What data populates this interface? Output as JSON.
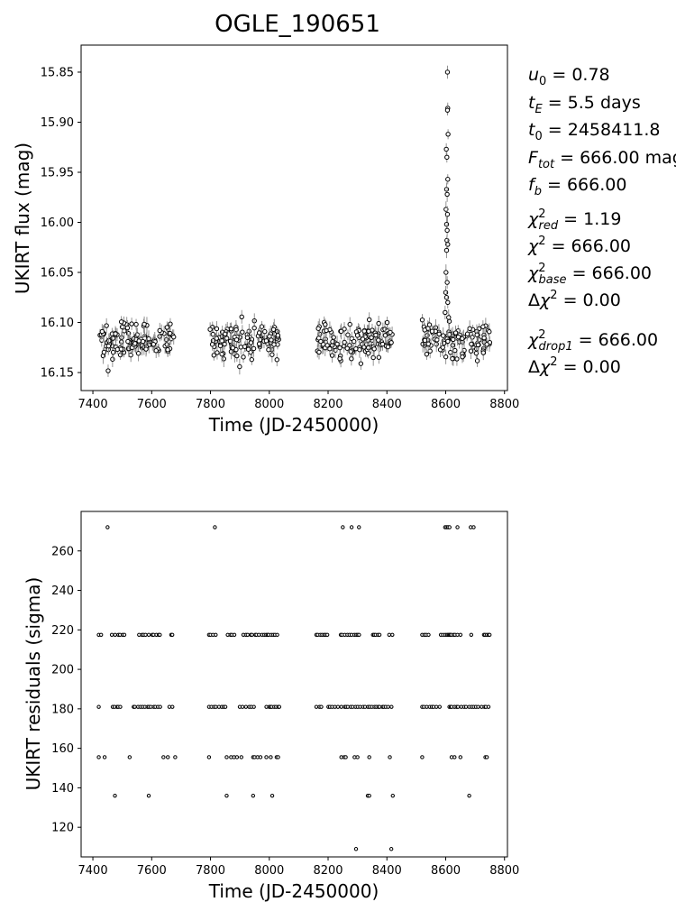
{
  "figure_title": "OGLE_190651",
  "params": {
    "u0": "0.78",
    "tE": "5.5",
    "tE_unit": "days",
    "t0": "2458411.8",
    "Ftot": "666.00",
    "Ftot_unit": "mag",
    "fb": "666.00",
    "chi2_red": "1.19",
    "chi2": "666.00",
    "chi2_base": "666.00",
    "dchi2": "0.00",
    "chi2_drop1": "666.00",
    "dchi2_drop1": "0.00"
  },
  "chart_data": [
    {
      "type": "scatter",
      "panel": "light-curve",
      "xlabel": "Time (JD-2450000)",
      "ylabel": "UKIRT flux (mag)",
      "xlim": [
        7360,
        8810
      ],
      "ylim": [
        16.168,
        15.823
      ],
      "y_inverted": true,
      "xticks": [
        7400,
        7600,
        7800,
        8000,
        8200,
        8400,
        8600,
        8800
      ],
      "yticks": [
        15.85,
        15.9,
        15.95,
        16.0,
        16.05,
        16.1,
        16.15
      ],
      "ytick_labels": [
        "15.85",
        "15.90",
        "15.95",
        "16.00",
        "16.05",
        "16.10",
        "16.15"
      ],
      "baseline_mag": 16.118,
      "seasons": [
        [
          7420,
          7675
        ],
        [
          7795,
          8035
        ],
        [
          8160,
          8420
        ],
        [
          8520,
          8750
        ]
      ],
      "peak": {
        "x": 8606,
        "y": 15.85
      },
      "event_points": [
        {
          "x": 8606,
          "y": 15.85
        },
        {
          "x": 8607,
          "y": 15.886
        },
        {
          "x": 8606,
          "y": 15.888
        },
        {
          "x": 8608,
          "y": 15.912
        },
        {
          "x": 8602,
          "y": 15.927
        },
        {
          "x": 8604,
          "y": 15.935
        },
        {
          "x": 8607,
          "y": 15.957
        },
        {
          "x": 8603,
          "y": 15.967
        },
        {
          "x": 8605,
          "y": 15.972
        },
        {
          "x": 8601,
          "y": 15.987
        },
        {
          "x": 8606,
          "y": 15.992
        },
        {
          "x": 8603,
          "y": 16.002
        },
        {
          "x": 8605,
          "y": 16.008
        },
        {
          "x": 8604,
          "y": 16.018
        },
        {
          "x": 8607,
          "y": 16.022
        },
        {
          "x": 8603,
          "y": 16.028
        },
        {
          "x": 8601,
          "y": 16.05
        },
        {
          "x": 8605,
          "y": 16.06
        },
        {
          "x": 8600,
          "y": 16.07
        },
        {
          "x": 8603,
          "y": 16.075
        },
        {
          "x": 8607,
          "y": 16.08
        },
        {
          "x": 8598,
          "y": 16.09
        },
        {
          "x": 8610,
          "y": 16.095
        }
      ],
      "errorbar": 0.006
    },
    {
      "type": "scatter",
      "panel": "residuals",
      "xlabel": "Time (JD-2450000)",
      "ylabel": "UKIRT residuals (sigma)",
      "xlim": [
        7360,
        8810
      ],
      "ylim": [
        105,
        280
      ],
      "xticks": [
        7400,
        7600,
        7800,
        8000,
        8200,
        8400,
        8600,
        8800
      ],
      "yticks": [
        120,
        140,
        160,
        180,
        200,
        220,
        240,
        260
      ],
      "levels": [
        {
          "y": 272,
          "x": [
            7450,
            7815,
            8250,
            8280,
            8305,
            8598,
            8603,
            8608,
            8613,
            8640,
            8685,
            8695
          ]
        },
        {
          "y": 217.5,
          "density": "dense"
        },
        {
          "y": 181,
          "density": "dense"
        },
        {
          "y": 155.5,
          "x": [
            7420,
            7440,
            7525,
            7640,
            7655,
            7680,
            7795,
            7855,
            7870,
            7880,
            7890,
            7905,
            7945,
            7950,
            7960,
            7970,
            7990,
            8005,
            8025,
            8030,
            8245,
            8255,
            8260,
            8290,
            8300,
            8340,
            8410,
            8520,
            8620,
            8630,
            8650,
            8735,
            8740
          ]
        },
        {
          "y": 136,
          "x": [
            7475,
            7590,
            7855,
            7945,
            8010,
            8335,
            8340,
            8420,
            8680
          ]
        },
        {
          "y": 109,
          "x": [
            8295,
            8415
          ]
        }
      ]
    }
  ]
}
